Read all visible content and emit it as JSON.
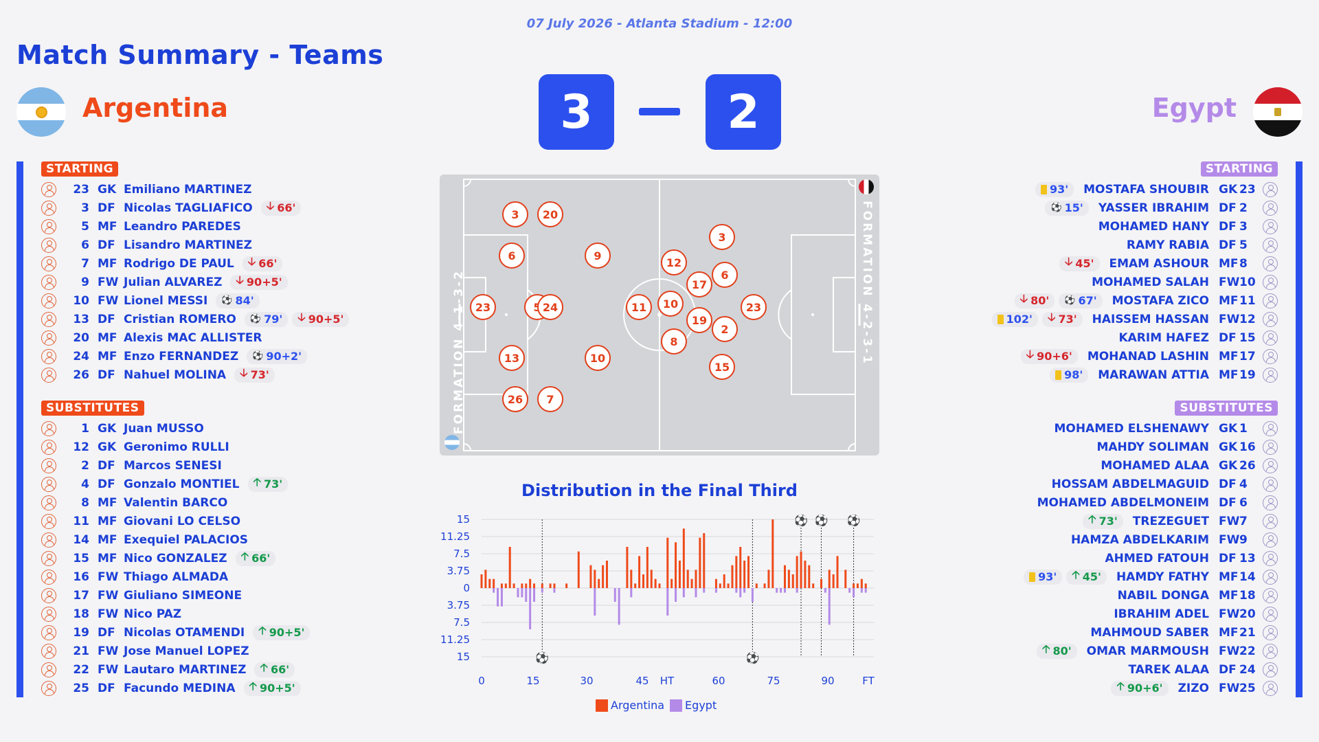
{
  "header": {
    "date_line": "07 July 2026 - Atlanta Stadium - 12:00",
    "title": "Match Summary - Teams"
  },
  "teams": {
    "home": {
      "name": "Argentina",
      "color": "#ef4a1a",
      "flag_icon": "argentina-flag-icon",
      "formation": "FORMATION 4-1-3-2"
    },
    "away": {
      "name": "Egypt",
      "color": "#b48ae8",
      "flag_icon": "egypt-flag-icon",
      "formation": "FORMATION 4-2-3-1"
    }
  },
  "score": {
    "home": "3",
    "away": "2"
  },
  "labels": {
    "starting": "STARTING",
    "substitutes": "SUBSTITUTES"
  },
  "home_starting": [
    {
      "num": "23",
      "pos": "GK",
      "name": "Emiliano MARTINEZ",
      "events": []
    },
    {
      "num": "3",
      "pos": "DF",
      "name": "Nicolas TAGLIAFICO",
      "events": [
        {
          "type": "sub-out",
          "text": "66'"
        }
      ]
    },
    {
      "num": "5",
      "pos": "MF",
      "name": "Leandro PAREDES",
      "events": []
    },
    {
      "num": "6",
      "pos": "DF",
      "name": "Lisandro MARTINEZ",
      "events": []
    },
    {
      "num": "7",
      "pos": "MF",
      "name": "Rodrigo DE PAUL",
      "events": [
        {
          "type": "sub-out",
          "text": "66'"
        }
      ]
    },
    {
      "num": "9",
      "pos": "FW",
      "name": "Julian ALVAREZ",
      "events": [
        {
          "type": "sub-out",
          "text": "90+5'"
        }
      ]
    },
    {
      "num": "10",
      "pos": "FW",
      "name": "Lionel MESSI",
      "events": [
        {
          "type": "goal",
          "text": "84'"
        }
      ]
    },
    {
      "num": "13",
      "pos": "DF",
      "name": "Cristian ROMERO",
      "events": [
        {
          "type": "goal",
          "text": "79'"
        },
        {
          "type": "sub-out",
          "text": "90+5'"
        }
      ]
    },
    {
      "num": "20",
      "pos": "MF",
      "name": "Alexis MAC ALLISTER",
      "events": []
    },
    {
      "num": "24",
      "pos": "MF",
      "name": "Enzo FERNANDEZ",
      "events": [
        {
          "type": "goal",
          "text": "90+2'"
        }
      ]
    },
    {
      "num": "26",
      "pos": "DF",
      "name": "Nahuel MOLINA",
      "events": [
        {
          "type": "sub-out",
          "text": "73'"
        }
      ]
    }
  ],
  "home_subs": [
    {
      "num": "1",
      "pos": "GK",
      "name": "Juan MUSSO",
      "events": []
    },
    {
      "num": "12",
      "pos": "GK",
      "name": "Geronimo RULLI",
      "events": []
    },
    {
      "num": "2",
      "pos": "DF",
      "name": "Marcos SENESI",
      "events": []
    },
    {
      "num": "4",
      "pos": "DF",
      "name": "Gonzalo MONTIEL",
      "events": [
        {
          "type": "sub-in",
          "text": "73'"
        }
      ]
    },
    {
      "num": "8",
      "pos": "MF",
      "name": "Valentin BARCO",
      "events": []
    },
    {
      "num": "11",
      "pos": "MF",
      "name": "Giovani LO CELSO",
      "events": []
    },
    {
      "num": "14",
      "pos": "MF",
      "name": "Exequiel PALACIOS",
      "events": []
    },
    {
      "num": "15",
      "pos": "MF",
      "name": "Nico GONZALEZ",
      "events": [
        {
          "type": "sub-in",
          "text": "66'"
        }
      ]
    },
    {
      "num": "16",
      "pos": "FW",
      "name": "Thiago ALMADA",
      "events": []
    },
    {
      "num": "17",
      "pos": "FW",
      "name": "Giuliano SIMEONE",
      "events": []
    },
    {
      "num": "18",
      "pos": "FW",
      "name": "Nico PAZ",
      "events": []
    },
    {
      "num": "19",
      "pos": "DF",
      "name": "Nicolas OTAMENDI",
      "events": [
        {
          "type": "sub-in",
          "text": "90+5'"
        }
      ]
    },
    {
      "num": "21",
      "pos": "FW",
      "name": "Jose Manuel LOPEZ",
      "events": []
    },
    {
      "num": "22",
      "pos": "FW",
      "name": "Lautaro MARTINEZ",
      "events": [
        {
          "type": "sub-in",
          "text": "66'"
        }
      ]
    },
    {
      "num": "25",
      "pos": "DF",
      "name": "Facundo MEDINA",
      "events": [
        {
          "type": "sub-in",
          "text": "90+5'"
        }
      ]
    }
  ],
  "away_starting": [
    {
      "num": "23",
      "pos": "GK",
      "name": "MOSTAFA SHOUBIR",
      "events": [
        {
          "type": "card",
          "text": "93'"
        }
      ]
    },
    {
      "num": "2",
      "pos": "DF",
      "name": "YASSER IBRAHIM",
      "events": [
        {
          "type": "goal",
          "text": "15'"
        }
      ]
    },
    {
      "num": "3",
      "pos": "DF",
      "name": "MOHAMED HANY",
      "events": []
    },
    {
      "num": "5",
      "pos": "DF",
      "name": "RAMY RABIA",
      "events": []
    },
    {
      "num": "8",
      "pos": "MF",
      "name": "EMAM ASHOUR",
      "events": [
        {
          "type": "sub-out",
          "text": "45'"
        }
      ]
    },
    {
      "num": "10",
      "pos": "FW",
      "name": "MOHAMED SALAH",
      "events": []
    },
    {
      "num": "11",
      "pos": "MF",
      "name": "MOSTAFA ZICO",
      "events": [
        {
          "type": "sub-out",
          "text": "80'"
        },
        {
          "type": "goal",
          "text": "67'"
        }
      ]
    },
    {
      "num": "12",
      "pos": "FW",
      "name": "HAISSEM HASSAN",
      "events": [
        {
          "type": "card",
          "text": "102'"
        },
        {
          "type": "sub-out",
          "text": "73'"
        }
      ]
    },
    {
      "num": "15",
      "pos": "DF",
      "name": "KARIM HAFEZ",
      "events": []
    },
    {
      "num": "17",
      "pos": "MF",
      "name": "MOHANAD LASHIN",
      "events": [
        {
          "type": "sub-out",
          "text": "90+6'"
        }
      ]
    },
    {
      "num": "19",
      "pos": "MF",
      "name": "MARAWAN ATTIA",
      "events": [
        {
          "type": "card",
          "text": "98'"
        }
      ]
    }
  ],
  "away_subs": [
    {
      "num": "1",
      "pos": "GK",
      "name": "MOHAMED ELSHENAWY",
      "events": []
    },
    {
      "num": "16",
      "pos": "GK",
      "name": "MAHDY SOLIMAN",
      "events": []
    },
    {
      "num": "26",
      "pos": "GK",
      "name": "MOHAMED ALAA",
      "events": []
    },
    {
      "num": "4",
      "pos": "DF",
      "name": "HOSSAM ABDELMAGUID",
      "events": []
    },
    {
      "num": "6",
      "pos": "DF",
      "name": "MOHAMED ABDELMONEIM",
      "events": []
    },
    {
      "num": "7",
      "pos": "FW",
      "name": "TREZEGUET",
      "events": [
        {
          "type": "sub-in",
          "text": "73'"
        }
      ]
    },
    {
      "num": "9",
      "pos": "FW",
      "name": "HAMZA ABDELKARIM",
      "events": []
    },
    {
      "num": "13",
      "pos": "DF",
      "name": "AHMED FATOUH",
      "events": []
    },
    {
      "num": "14",
      "pos": "MF",
      "name": "HAMDY FATHY",
      "events": [
        {
          "type": "card",
          "text": "93'"
        },
        {
          "type": "sub-in",
          "text": "45'"
        }
      ]
    },
    {
      "num": "18",
      "pos": "MF",
      "name": "NABIL DONGA",
      "events": []
    },
    {
      "num": "20",
      "pos": "FW",
      "name": "IBRAHIM ADEL",
      "events": []
    },
    {
      "num": "21",
      "pos": "MF",
      "name": "MAHMOUD SABER",
      "events": []
    },
    {
      "num": "22",
      "pos": "FW",
      "name": "OMAR MARMOUSH",
      "events": [
        {
          "type": "sub-in",
          "text": "80'"
        }
      ]
    },
    {
      "num": "24",
      "pos": "DF",
      "name": "TAREK ALAA",
      "events": []
    },
    {
      "num": "25",
      "pos": "FW",
      "name": "ZIZO",
      "events": [
        {
          "type": "sub-in",
          "text": "90+6'"
        }
      ]
    }
  ],
  "pitch_home_numbers": [
    "3",
    "20",
    "6",
    "9",
    "23",
    "5",
    "24",
    "13",
    "10",
    "26",
    "7"
  ],
  "pitch_away_numbers": [
    "3",
    "12",
    "6",
    "17",
    "11",
    "10",
    "23",
    "19",
    "2",
    "8",
    "15"
  ],
  "chart_data": {
    "type": "bar",
    "title": "Distribution in the Final Third",
    "x_ticks": [
      "0",
      "15",
      "30",
      "45",
      "HT",
      "60",
      "75",
      "90",
      "FT"
    ],
    "y_ticks": [
      "15",
      "11.25",
      "7.5",
      "3.75",
      "0",
      "3.75",
      "7.5",
      "11.25",
      "15"
    ],
    "ylim": [
      -15,
      15
    ],
    "series": [
      {
        "name": "Argentina",
        "color": "#ef4a1a",
        "x": [
          0,
          1,
          2,
          3,
          5,
          6,
          7,
          8,
          10,
          11,
          12,
          13,
          15,
          17,
          18,
          21,
          24,
          27,
          28,
          29,
          30,
          31,
          36,
          37,
          38,
          39,
          40,
          41,
          42,
          43,
          44,
          46,
          47,
          48,
          49,
          50,
          51,
          52,
          53,
          54,
          55,
          58,
          59,
          60,
          61,
          62,
          63,
          64,
          65,
          66,
          68,
          70,
          71,
          72,
          75,
          76,
          77,
          78,
          79,
          80,
          81,
          82,
          84,
          86,
          87,
          88,
          90,
          92,
          93,
          94,
          95
        ],
        "values": [
          3,
          4,
          2,
          2,
          1,
          1,
          9,
          1,
          1,
          1,
          2,
          1,
          1,
          1,
          1,
          1,
          8,
          5,
          4,
          2,
          5,
          6,
          9,
          4,
          1,
          7,
          3,
          9,
          4,
          2,
          1,
          11,
          2,
          10,
          6,
          13,
          4,
          2,
          4,
          11,
          12,
          2,
          1,
          3,
          1,
          5,
          7,
          9,
          6,
          7,
          1,
          1,
          4,
          15,
          5,
          4,
          3,
          7,
          8,
          6,
          5,
          1,
          2,
          4,
          3,
          7,
          4,
          1,
          1,
          2,
          1
        ]
      },
      {
        "name": "Egypt",
        "color": "#b48ae8",
        "x": [
          3,
          4,
          5,
          9,
          10,
          11,
          12,
          13,
          15,
          18,
          28,
          33,
          34,
          37,
          46,
          48,
          50,
          53,
          55,
          58,
          63,
          64,
          65,
          67,
          73,
          74,
          75,
          78,
          85,
          86,
          91,
          92,
          94,
          95
        ],
        "values": [
          -1,
          -4,
          -4,
          -2,
          -2,
          -3,
          -9,
          -3,
          -1,
          -1,
          -6,
          -3,
          -8,
          -2,
          -6,
          -3,
          -2,
          -2,
          -1,
          -1,
          -1,
          -2,
          -1,
          -3,
          -1,
          -1,
          -1,
          -1,
          -1,
          -8,
          -1,
          -2,
          -1,
          -1
        ]
      }
    ],
    "home_goal_minutes": [
      79,
      84,
      92
    ],
    "away_goal_minutes": [
      15,
      67
    ]
  }
}
